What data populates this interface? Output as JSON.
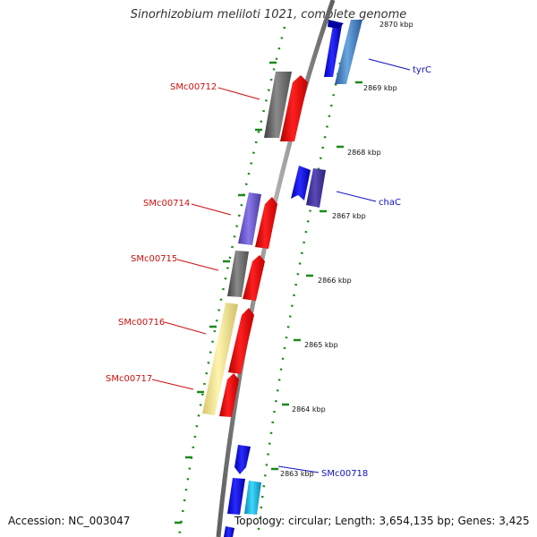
{
  "title": "Sinorhizobium meliloti 1021, complete genome",
  "footer": {
    "accession": "Accession: NC_003047",
    "summary": "Topology: circular; Length: 3,654,135 bp; Genes: 3,425"
  },
  "ruler": {
    "tick_labels": [
      "2870 kbp",
      "2869 kbp",
      "2868 kbp",
      "2867 kbp",
      "2866 kbp",
      "2865 kbp",
      "2864 kbp",
      "2863 kbp"
    ]
  },
  "gene_labels": {
    "right": [
      "tyrC",
      "chaC",
      "SMc00718"
    ],
    "left": [
      "SMc00712",
      "SMc00714",
      "SMc00715",
      "SMc00716",
      "SMc00717"
    ]
  },
  "colors": {
    "backbone": "#8a8a8a",
    "forward_strand": "#0a0aee",
    "reverse_strand": "#ee0a0a",
    "gray_feature": "#6a6a6a",
    "purple_feature": "#7060d0",
    "light_blue_feature": "#4a86c8",
    "cyan_feature": "#18c0e8",
    "yellow_feature": "#f0e498",
    "dotted_ruler": "#1a8a1a",
    "right_label_color": "#1010c0",
    "left_label_color": "#cc1010"
  }
}
